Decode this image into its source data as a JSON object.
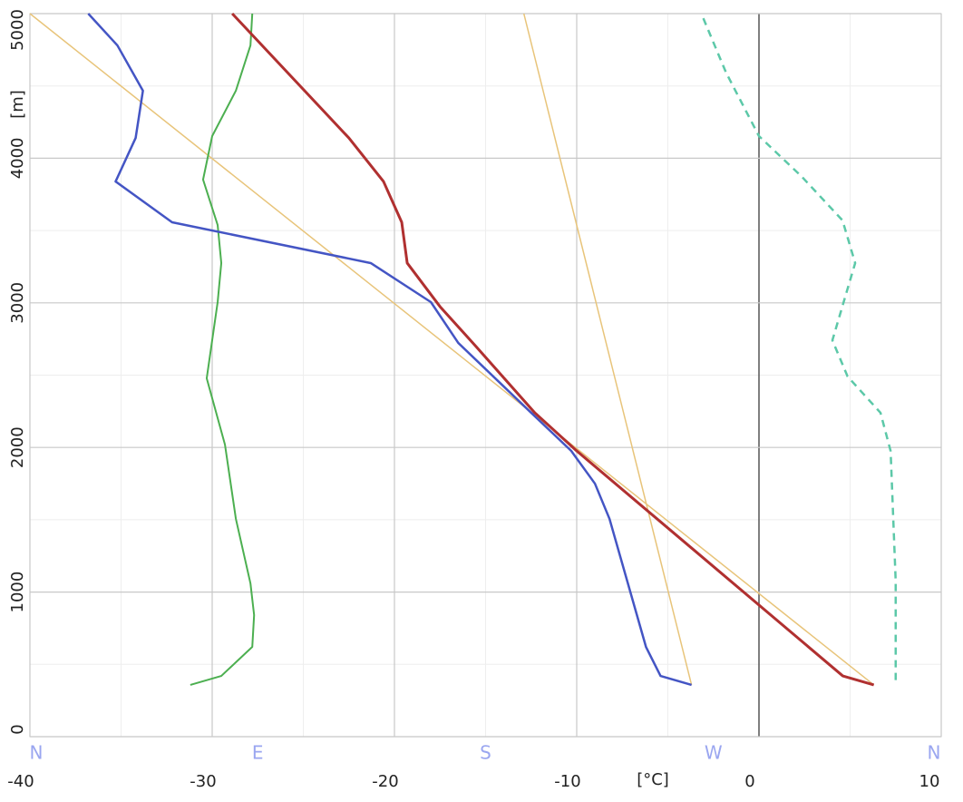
{
  "chart_data": {
    "type": "line",
    "xlabel": "[°C]",
    "ylabel": "[m]",
    "xlim": [
      -40,
      10
    ],
    "xticks": [
      -40,
      -30,
      -20,
      -10,
      0,
      10
    ],
    "ylim": [
      0,
      5000
    ],
    "yticks": [
      0,
      1000,
      2000,
      3000,
      4000,
      5000
    ],
    "x2lim": [
      0,
      360
    ],
    "x2ticks": [
      {
        "value": 0,
        "label": "N"
      },
      {
        "value": 90,
        "label": "E"
      },
      {
        "value": 180,
        "label": "S"
      },
      {
        "value": 270,
        "label": "W"
      },
      {
        "value": 360,
        "label": "N"
      }
    ],
    "grid": true,
    "zero_line": true,
    "series": [
      {
        "color": "#e8c47a",
        "width": 1.5,
        "x": [
          -40,
          6.3
        ],
        "y": [
          5000,
          358
        ]
      },
      {
        "color": "#e8c47a",
        "width": 1.5,
        "x": [
          -12.9,
          -3.7
        ],
        "y": [
          5000,
          358
        ]
      },
      {
        "color": "#4caf50",
        "width": 2,
        "x": [
          -27.8,
          -27.9,
          -28.7,
          -30.0,
          -30.5,
          -29.7,
          -29.5,
          -29.7,
          -30.3,
          -29.3,
          -28.7,
          -27.9,
          -27.7,
          -27.8,
          -29.5,
          -31.2
        ],
        "y": [
          5000,
          4780,
          4467,
          4153,
          3852,
          3538,
          3275,
          3005,
          2478,
          2020,
          1506,
          1060,
          841,
          621,
          420,
          358
        ]
      },
      {
        "color": "#4455c4",
        "width": 2.5,
        "x": [
          -36.8,
          -35.2,
          -33.8,
          -34.2,
          -35.3,
          -32.2,
          -21.3,
          -18.0,
          -16.5,
          -12.5,
          -10.3,
          -9.0,
          -8.2,
          -6.2,
          -5.4,
          -3.7
        ],
        "y": [
          5000,
          4780,
          4467,
          4140,
          3839,
          3557,
          3275,
          3005,
          2723,
          2240,
          1976,
          1750,
          1506,
          621,
          420,
          358
        ]
      },
      {
        "color": "#b03030",
        "width": 3,
        "x": [
          -28.9,
          -22.5,
          -20.6,
          -19.6,
          -19.3,
          -17.5,
          -15.7,
          -12.3,
          -10.0,
          4.6,
          6.3
        ],
        "y": [
          5000,
          4140,
          3839,
          3557,
          3275,
          2974,
          2723,
          2240,
          1976,
          420,
          358
        ]
      },
      {
        "color": "#5cc8a8",
        "width": 2.5,
        "dashed": true,
        "axis": "x2",
        "x": [
          266,
          275,
          288,
          305,
          321,
          326,
          317,
          323,
          336,
          340,
          342,
          342
        ],
        "y": [
          4968,
          4592,
          4153,
          3871,
          3570,
          3275,
          2741,
          2491,
          2240,
          1976,
          1079,
          358
        ]
      }
    ]
  }
}
